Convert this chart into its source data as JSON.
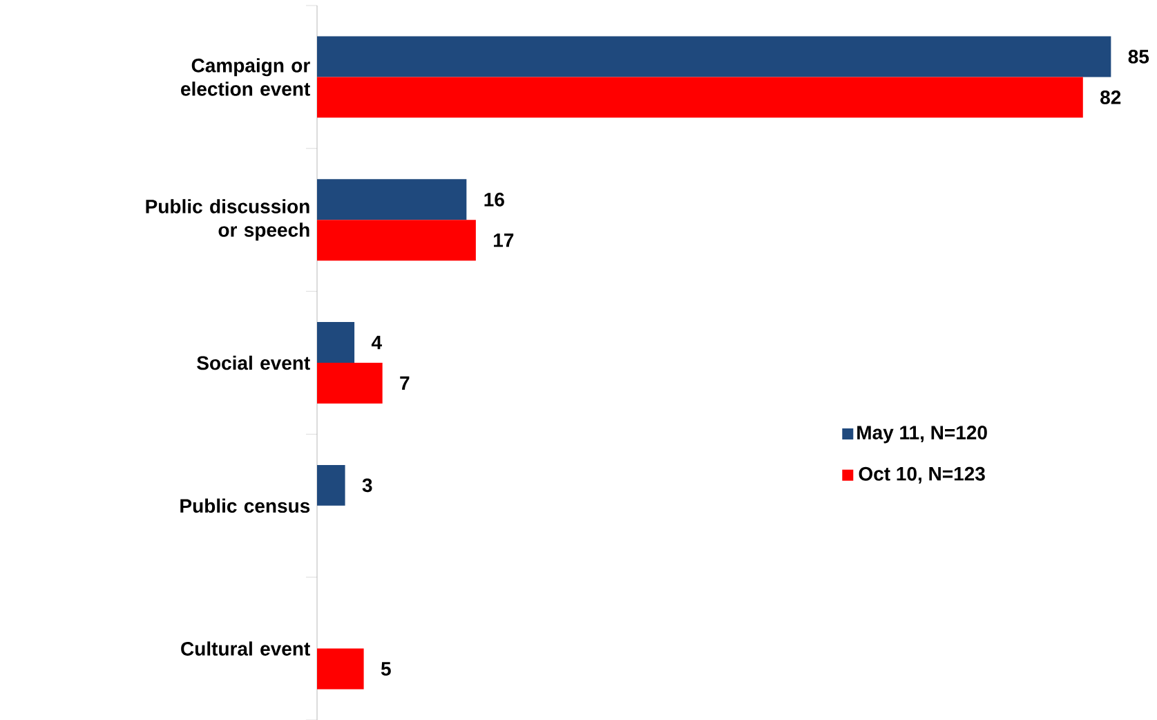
{
  "chart_data": {
    "type": "bar",
    "orientation": "horizontal",
    "categories": [
      "Campaign or election event",
      "Public discussion or speech",
      "Social event",
      "Public census",
      "Cultural event"
    ],
    "series": [
      {
        "name": "May 11, N=120",
        "color": "#1f497d",
        "values": [
          85,
          16,
          4,
          3,
          null
        ]
      },
      {
        "name": "Oct 10, N=123",
        "color": "#ff0000",
        "values": [
          82,
          17,
          7,
          null,
          5
        ]
      }
    ],
    "data_labels": true,
    "legend": "right"
  }
}
